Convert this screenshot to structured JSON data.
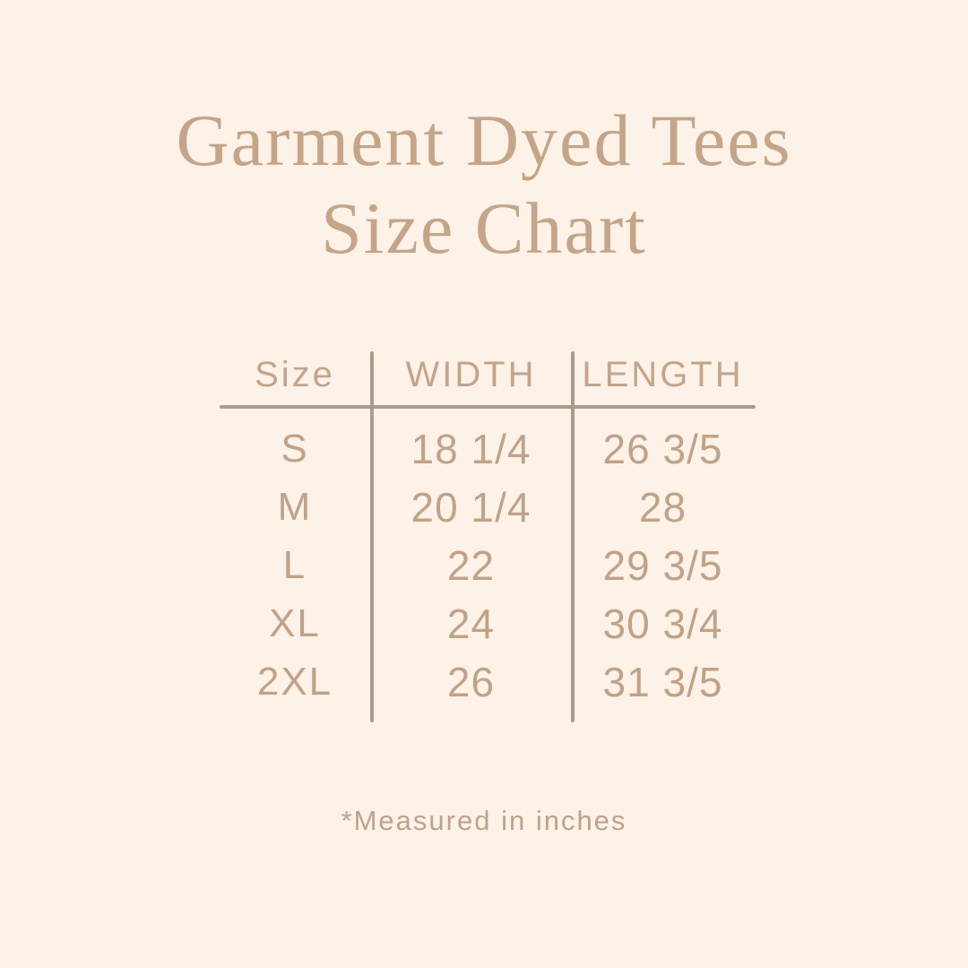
{
  "page": {
    "background_color": "#fdf2e8",
    "accent_text_color": "#c5a588",
    "table_text_color": "#c1a286",
    "rule_color": "#ab9b8e"
  },
  "title": {
    "line1": "Garment Dyed Tees",
    "line2": "Size Chart"
  },
  "table": {
    "headers": [
      "Size",
      "WIDTH",
      "LENGTH"
    ],
    "rows": [
      {
        "size": "S",
        "width": "18 1/4",
        "length": "26 3/5"
      },
      {
        "size": "M",
        "width": "20 1/4",
        "length": "28"
      },
      {
        "size": "L",
        "width": "22",
        "length": "29 3/5"
      },
      {
        "size": "XL",
        "width": "24",
        "length": "30 3/4"
      },
      {
        "size": "2XL",
        "width": "26",
        "length": "31 3/5"
      }
    ]
  },
  "footnote": {
    "text": "*Measured in inches"
  },
  "chart_data": {
    "type": "table",
    "title": "Garment Dyed Tees Size Chart",
    "columns": [
      "Size",
      "WIDTH",
      "LENGTH"
    ],
    "rows": [
      [
        "S",
        "18 1/4",
        "26 3/5"
      ],
      [
        "M",
        "20 1/4",
        "28"
      ],
      [
        "L",
        "22",
        "29 3/5"
      ],
      [
        "XL",
        "24",
        "30 3/4"
      ],
      [
        "2XL",
        "26",
        "31 3/5"
      ]
    ],
    "units": "inches",
    "footnote": "*Measured in inches",
    "numeric_values": {
      "width_inches": [
        18.25,
        20.25,
        22,
        24,
        26
      ],
      "length_inches": [
        26.6,
        28,
        29.6,
        30.75,
        31.6
      ]
    }
  }
}
